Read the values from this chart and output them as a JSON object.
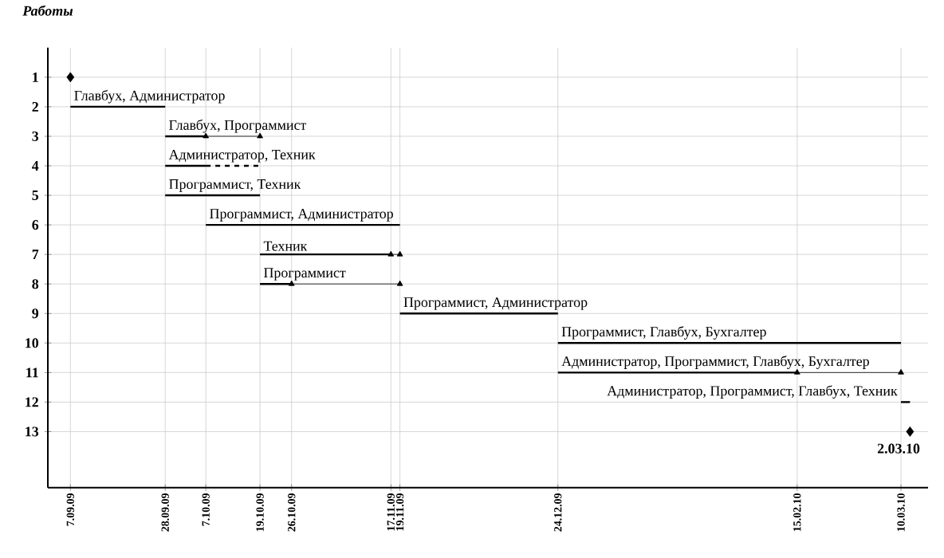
{
  "chart_data": {
    "type": "line",
    "ylabel": "Работы",
    "grid": true,
    "line_style": "solid",
    "xlim": [
      "2009-09-02",
      "2010-03-16"
    ],
    "xticks": [
      {
        "value": "2009-09-07",
        "label": "7.09.09"
      },
      {
        "value": "2009-09-28",
        "label": "28.09.09"
      },
      {
        "value": "2009-10-07",
        "label": "7.10.09"
      },
      {
        "value": "2009-10-19",
        "label": "19.10.09"
      },
      {
        "value": "2009-10-26",
        "label": "26.10.09"
      },
      {
        "value": "2009-11-17",
        "label": "17.11.09"
      },
      {
        "value": "2009-11-19",
        "label": "19.11.09"
      },
      {
        "value": "2009-12-24",
        "label": "24.12.09"
      },
      {
        "value": "2010-02-15",
        "label": "15.02.10"
      },
      {
        "value": "2010-03-10",
        "label": "10.03.10"
      }
    ],
    "ylim": [
      14.9,
      0
    ],
    "yticks": [
      1,
      2,
      3,
      4,
      5,
      6,
      7,
      8,
      9,
      10,
      11,
      12,
      13
    ],
    "series": [
      {
        "type": "scatter",
        "marker": "diamond",
        "color": "#000000",
        "x": [
          "2009-09-07"
        ],
        "values": [
          1
        ]
      },
      {
        "color": "#000000",
        "x": [
          "2009-09-07",
          "2009-09-28"
        ],
        "values": [
          2,
          2
        ]
      },
      {
        "color": "#000000",
        "x": [
          "2009-09-28",
          "2009-10-07"
        ],
        "values": [
          3,
          3
        ]
      },
      {
        "color": "#000000",
        "marker": "triangle",
        "x": [
          "2009-10-07",
          "2009-10-19"
        ],
        "values": [
          3,
          3
        ]
      },
      {
        "color": "#000000",
        "x": [
          "2009-09-28",
          "2009-10-07"
        ],
        "values": [
          4,
          4
        ]
      },
      {
        "color": "#000000",
        "line_style": "dashed",
        "x": [
          "2009-10-07",
          "2009-10-19"
        ],
        "values": [
          4,
          4
        ]
      },
      {
        "color": "#000000",
        "x": [
          "2009-09-28",
          "2009-10-19"
        ],
        "values": [
          5,
          5
        ]
      },
      {
        "color": "#000000",
        "x": [
          "2009-10-07",
          "2009-11-19"
        ],
        "values": [
          6,
          6
        ]
      },
      {
        "color": "#000000",
        "x": [
          "2009-10-19",
          "2009-11-17"
        ],
        "values": [
          7,
          7
        ]
      },
      {
        "color": "#000000",
        "marker": "triangle",
        "x": [
          "2009-11-17",
          "2009-11-19"
        ],
        "values": [
          7,
          7
        ]
      },
      {
        "color": "#000000",
        "x": [
          "2009-10-19",
          "2009-10-26"
        ],
        "values": [
          8,
          8
        ]
      },
      {
        "color": "#000000",
        "marker": "triangle",
        "x": [
          "2009-10-26",
          "2009-11-19"
        ],
        "values": [
          8,
          8
        ]
      },
      {
        "color": "#000000",
        "x": [
          "2009-11-19",
          "2009-12-24"
        ],
        "values": [
          9,
          9
        ]
      },
      {
        "color": "#000000",
        "x": [
          "2009-12-24",
          "2010-03-10"
        ],
        "values": [
          10,
          10
        ]
      },
      {
        "color": "#000000",
        "x": [
          "2009-12-24",
          "2010-02-15"
        ],
        "values": [
          11,
          11
        ]
      },
      {
        "color": "#000000",
        "marker": "triangle",
        "x": [
          "2010-02-15",
          "2010-03-10"
        ],
        "values": [
          11,
          11
        ]
      },
      {
        "color": "#000000",
        "x": [
          "2010-03-10",
          "2010-03-12"
        ],
        "values": [
          12,
          12
        ]
      },
      {
        "type": "scatter",
        "marker": "diamond",
        "color": "#000000",
        "x": [
          "2010-03-12"
        ],
        "values": [
          13
        ]
      }
    ],
    "annotations": [
      {
        "text": "Главбух, Администратор",
        "x": "2009-09-07",
        "y": 2
      },
      {
        "text": "Главбух, Программист",
        "x": "2009-09-28",
        "y": 3
      },
      {
        "text": "Администратор, Техник",
        "x": "2009-09-28",
        "y": 4
      },
      {
        "text": "Программист, Техник",
        "x": "2009-09-28",
        "y": 5
      },
      {
        "text": "Программист, Администратор",
        "x": "2009-10-07",
        "y": 6
      },
      {
        "text": "Техник",
        "x": "2009-10-19",
        "y": 7
      },
      {
        "text": "Программист",
        "x": "2009-10-19",
        "y": 8
      },
      {
        "text": "Программист, Администратор",
        "x": "2009-11-19",
        "y": 9
      },
      {
        "text": "Программист, Главбух, Бухгалтер",
        "x": "2009-12-24",
        "y": 10
      },
      {
        "text": "Администратор, Программист, Главбух, Бухгалтер",
        "x": "2009-12-24",
        "y": 11
      },
      {
        "text": "Администратор, Программист, Главбух, Техник",
        "x": "2010-03-10",
        "y": 12
      },
      "2.03.10"
    ]
  }
}
